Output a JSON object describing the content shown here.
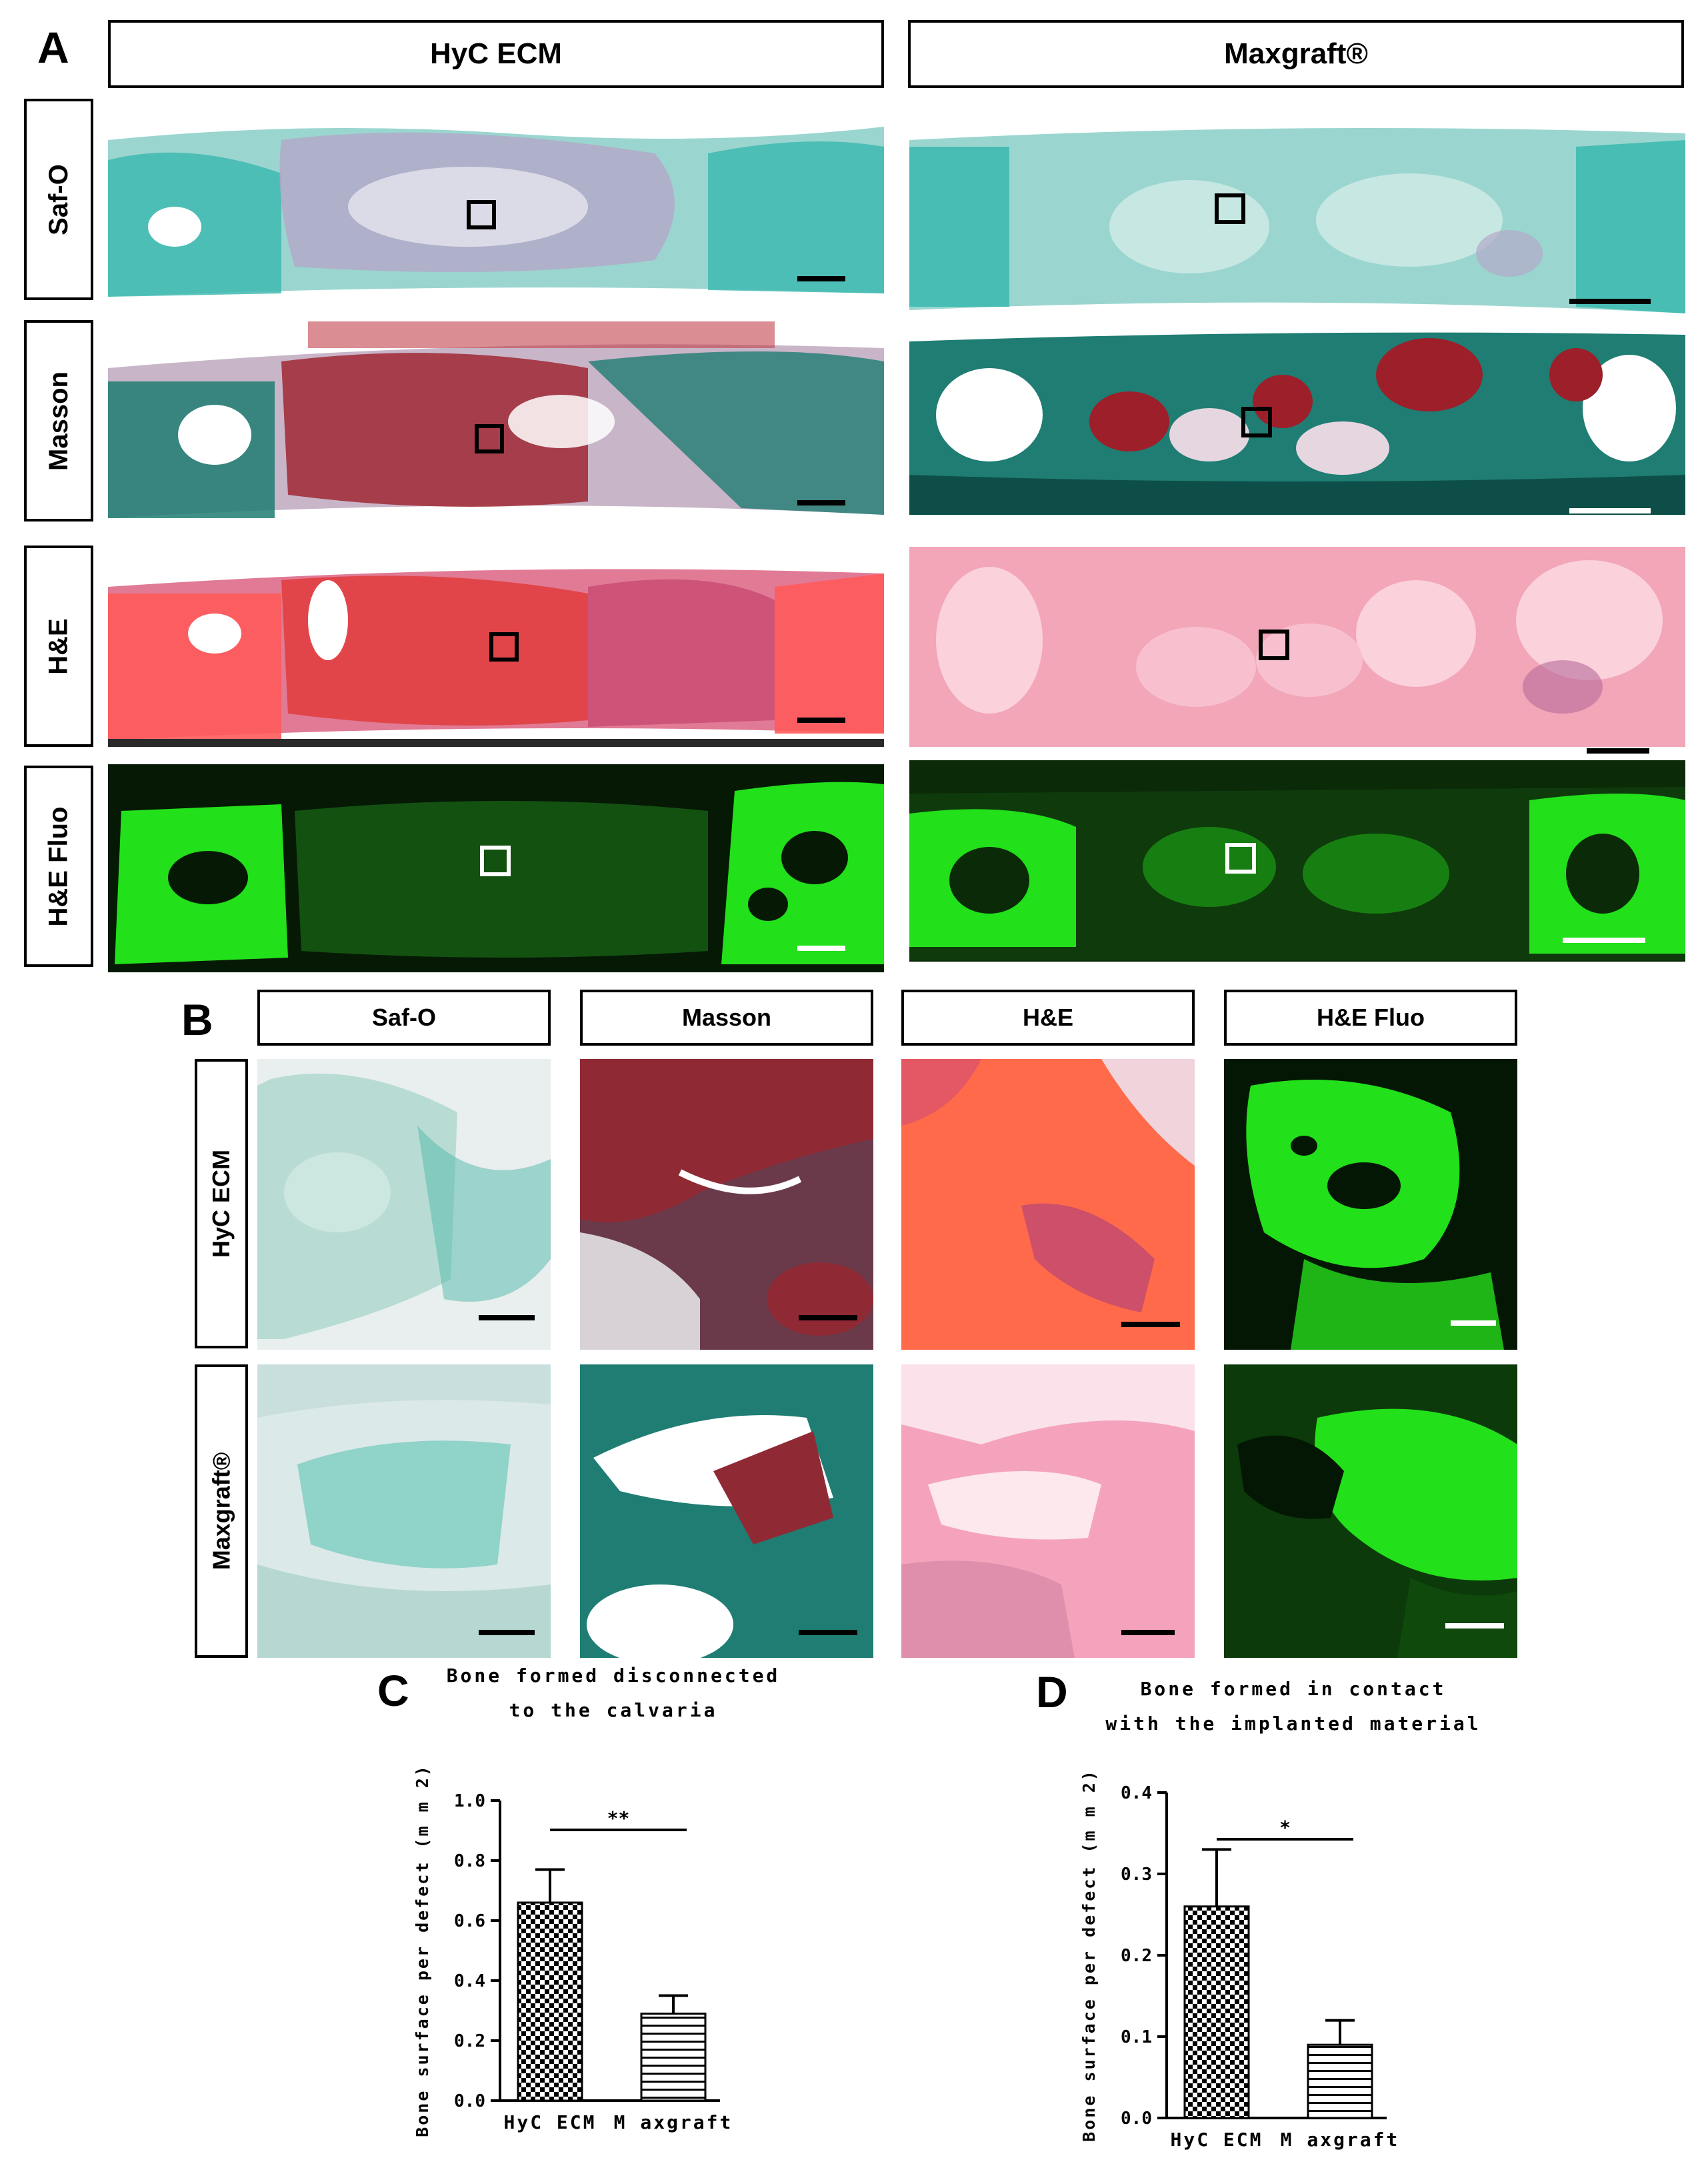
{
  "panel_a": {
    "letter": "A",
    "columns": [
      "HyC ECM",
      "Maxgraft®"
    ],
    "rows": [
      "Saf-O",
      "Masson",
      "H&E",
      "H&E Fluo"
    ]
  },
  "panel_b": {
    "letter": "B",
    "columns": [
      "Saf-O",
      "Masson",
      "H&E",
      "H&E Fluo"
    ],
    "rows": [
      "HyC ECM",
      "Maxgraft®"
    ]
  },
  "panel_c": {
    "letter": "C",
    "title_line1": "Bone formed disconnected",
    "title_line2": "to the calvaria"
  },
  "panel_d": {
    "letter": "D",
    "title_line1": "Bone formed in contact",
    "title_line2": "with the implanted material"
  },
  "stain_colors": {
    "safo_bg": "#9ad6cf",
    "safo_tissue": "#3fbab0",
    "masson_red": "#9c1f2a",
    "masson_green": "#1f7d73",
    "he_pink": "#f2a6b8",
    "he_red": "#ff5a5a",
    "fluo_green": "#22e01a",
    "fluo_bg": "#051905"
  },
  "chart_data": [
    {
      "type": "bar",
      "title": "",
      "categories": [
        "HyC ECM",
        "M axgraft"
      ],
      "series": [
        {
          "values": [
            0.66,
            0.29
          ],
          "errors": [
            0.11,
            0.06
          ]
        }
      ],
      "ylabel": "Bone surface per defect (m m 2)",
      "xlabel": "",
      "ylim": [
        0.0,
        1.0
      ],
      "yticks": [
        "0.0",
        "0.2",
        "0.4",
        "0.6",
        "0.8",
        "1.0"
      ],
      "significance": "**",
      "bar_patterns": [
        "checkerboard",
        "horizontal-lines"
      ],
      "grid": false
    },
    {
      "type": "bar",
      "title": "",
      "categories": [
        "HyC ECM",
        "M axgraft"
      ],
      "series": [
        {
          "values": [
            0.26,
            0.09
          ],
          "errors": [
            0.07,
            0.03
          ]
        }
      ],
      "ylabel": "Bone surface per defect (m m 2)",
      "xlabel": "",
      "ylim": [
        0.0,
        0.4
      ],
      "yticks": [
        "0.0",
        "0.1",
        "0.2",
        "0.3",
        "0.4"
      ],
      "significance": "*",
      "bar_patterns": [
        "checkerboard",
        "horizontal-lines"
      ],
      "grid": false
    }
  ]
}
